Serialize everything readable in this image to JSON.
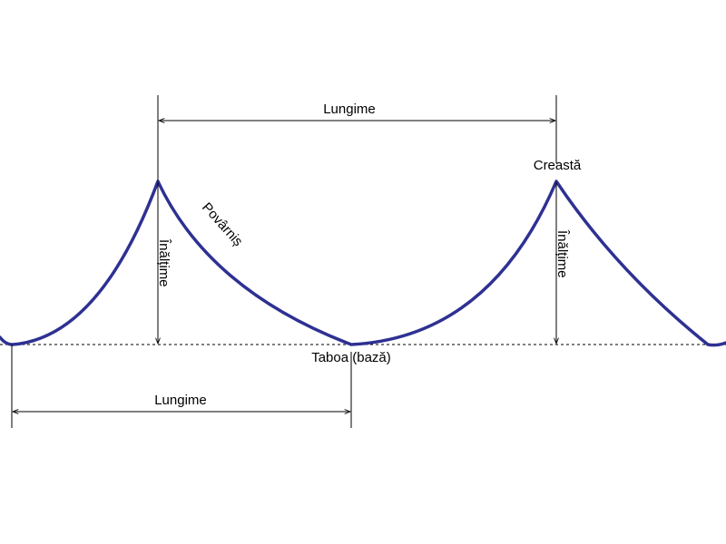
{
  "colors": {
    "wave": "#2e3192",
    "lines": "#000000"
  },
  "labels": {
    "wavelength_top": "Lungime",
    "wavelength_bottom": "Lungime",
    "crest": "Creastă",
    "trough": "Taboa (bază)",
    "slope": "Povârniș",
    "height_left": "Înălțime",
    "height_right": "Înălțime"
  }
}
